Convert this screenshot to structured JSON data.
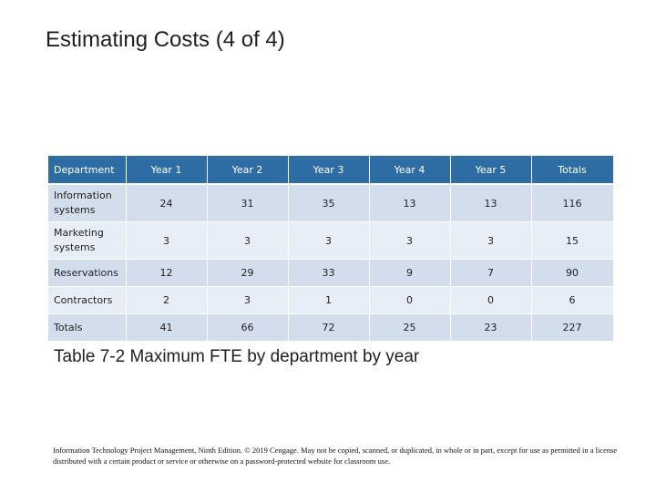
{
  "title": "Estimating Costs (4 of 4)",
  "table": {
    "headers": [
      "Department",
      "Year 1",
      "Year 2",
      "Year 3",
      "Year 4",
      "Year 5",
      "Totals"
    ],
    "rows": [
      [
        "Information systems",
        "24",
        "31",
        "35",
        "13",
        "13",
        "116"
      ],
      [
        "Marketing systems",
        "3",
        "3",
        "3",
        "3",
        "3",
        "15"
      ],
      [
        "Reservations",
        "12",
        "29",
        "33",
        "9",
        "7",
        "90"
      ],
      [
        "Contractors",
        "2",
        "3",
        "1",
        "0",
        "0",
        "6"
      ],
      [
        "Totals",
        "41",
        "66",
        "72",
        "25",
        "23",
        "227"
      ]
    ]
  },
  "caption": "Table 7-2 Maximum FTE by department by year",
  "footer": "Information Technology Project Management, Ninth Edition. © 2019 Cengage. May not be copied, scanned, or duplicated, in whole or in part, except for use as permitted in a license distributed with a certain product or service or otherwise on a password-protected website for classroom use."
}
